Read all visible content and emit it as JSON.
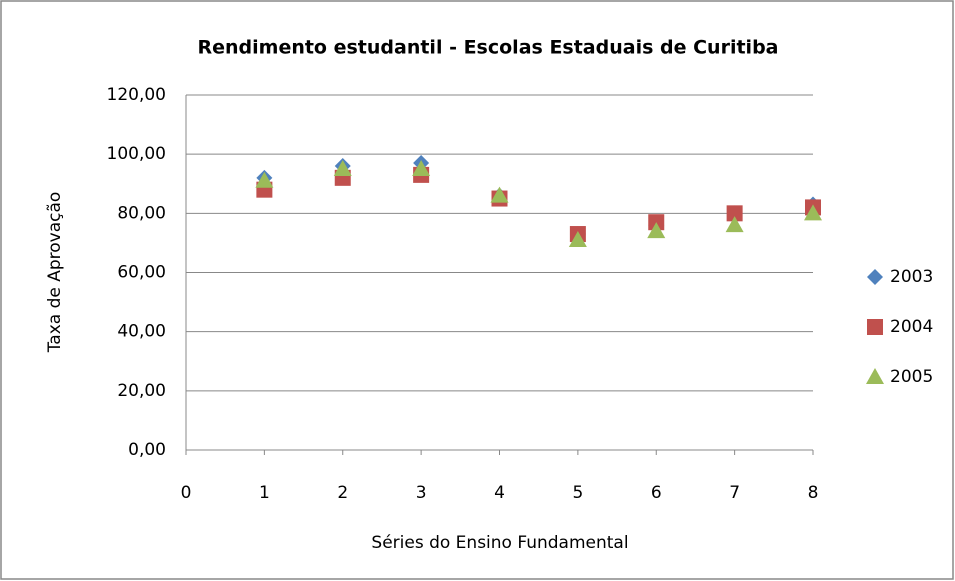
{
  "chart_data": {
    "type": "scatter",
    "title": "Rendimento estudantil - Escolas Estaduais de Curitiba",
    "x_label": "Séries do Ensino Fundamental",
    "y_label": "Taxa de Aprovação",
    "x": [
      1,
      2,
      3,
      4,
      5,
      6,
      7,
      8
    ],
    "series": [
      {
        "name": "2003",
        "color": "#4f81bd",
        "marker": "diamond",
        "values": [
          92,
          96,
          97,
          86,
          73,
          76,
          80,
          83
        ]
      },
      {
        "name": "2004",
        "color": "#c0504d",
        "marker": "square",
        "values": [
          88,
          92,
          93,
          85,
          73,
          77,
          80,
          82
        ]
      },
      {
        "name": "2005",
        "color": "#9bbb59",
        "marker": "triangle",
        "values": [
          91,
          95,
          95,
          86,
          71,
          74,
          76,
          80
        ]
      }
    ],
    "xlim": [
      0,
      8
    ],
    "xticks": [
      0,
      1,
      2,
      3,
      4,
      5,
      6,
      7,
      8
    ],
    "ylim": [
      0,
      120
    ],
    "yticks": [
      {
        "value": 0,
        "label": "0,00"
      },
      {
        "value": 20,
        "label": "20,00"
      },
      {
        "value": 40,
        "label": "40,00"
      },
      {
        "value": 60,
        "label": "60,00"
      },
      {
        "value": 80,
        "label": "80,00"
      },
      {
        "value": 100,
        "label": "100,00"
      },
      {
        "value": 120,
        "label": "120,00"
      }
    ],
    "grid": true,
    "legend": "right"
  }
}
